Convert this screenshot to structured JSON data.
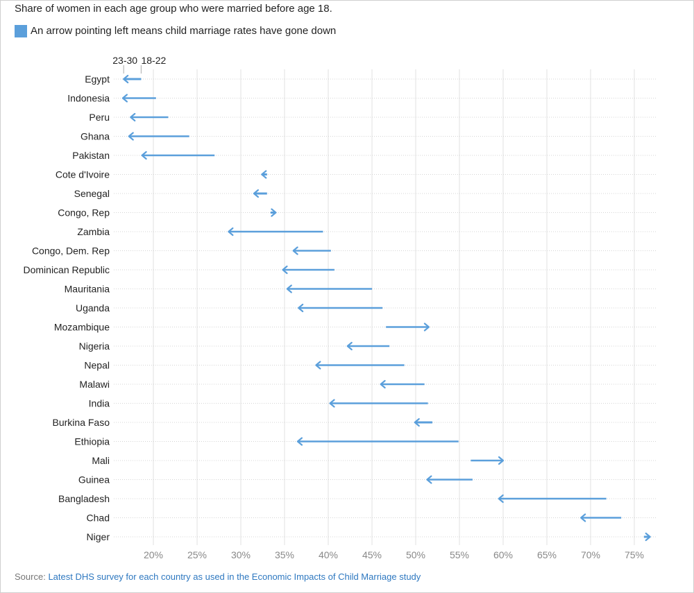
{
  "title": "Share of women in each age group who were married before age 18.",
  "legend": {
    "text": "An arrow pointing left means child marriage rates have gone down",
    "color": "#5b9fdb"
  },
  "source": {
    "label": "Source:",
    "link_text": "Latest DHS survey for each country as used in the Economic Impacts of Child Marriage study"
  },
  "chart_data": {
    "type": "arrow-dot",
    "series": [
      {
        "name": "18-22",
        "key": "from"
      },
      {
        "name": "23-30",
        "key": "to"
      }
    ],
    "xlim": [
      16.5,
      77
    ],
    "xticks": [
      20,
      25,
      30,
      35,
      40,
      45,
      50,
      55,
      60,
      65,
      70,
      75
    ],
    "xtick_labels": [
      "20%",
      "25%",
      "30%",
      "35%",
      "40%",
      "45%",
      "50%",
      "55%",
      "60%",
      "65%",
      "70%",
      "75%"
    ],
    "grid": true,
    "arrow_color": "#5b9fdb",
    "countries": [
      {
        "name": "Egypt",
        "from": 18.6,
        "to": 16.6
      },
      {
        "name": "Indonesia",
        "from": 20.3,
        "to": 16.5
      },
      {
        "name": "Peru",
        "from": 21.7,
        "to": 17.4
      },
      {
        "name": "Ghana",
        "from": 24.1,
        "to": 17.2
      },
      {
        "name": "Pakistan",
        "from": 27.0,
        "to": 18.7
      },
      {
        "name": "Cote d'Ivoire",
        "from": 33.0,
        "to": 32.4
      },
      {
        "name": "Senegal",
        "from": 33.0,
        "to": 31.5
      },
      {
        "name": "Congo, Rep",
        "from": 33.4,
        "to": 34.0
      },
      {
        "name": "Zambia",
        "from": 39.4,
        "to": 28.6
      },
      {
        "name": "Congo, Dem. Rep",
        "from": 40.3,
        "to": 36.0
      },
      {
        "name": "Dominican Republic",
        "from": 40.7,
        "to": 34.8
      },
      {
        "name": "Mauritania",
        "from": 45.0,
        "to": 35.3
      },
      {
        "name": "Uganda",
        "from": 46.2,
        "to": 36.6
      },
      {
        "name": "Mozambique",
        "from": 46.6,
        "to": 51.5
      },
      {
        "name": "Nigeria",
        "from": 47.0,
        "to": 42.2
      },
      {
        "name": "Nepal",
        "from": 48.7,
        "to": 38.6
      },
      {
        "name": "Malawi",
        "from": 51.0,
        "to": 46.0
      },
      {
        "name": "India",
        "from": 51.4,
        "to": 40.2
      },
      {
        "name": "Burkina Faso",
        "from": 51.9,
        "to": 49.9
      },
      {
        "name": "Ethiopia",
        "from": 54.9,
        "to": 36.5
      },
      {
        "name": "Mali",
        "from": 56.3,
        "to": 60.0
      },
      {
        "name": "Guinea",
        "from": 56.5,
        "to": 51.3
      },
      {
        "name": "Bangladesh",
        "from": 71.8,
        "to": 59.5
      },
      {
        "name": "Chad",
        "from": 73.5,
        "to": 68.9
      },
      {
        "name": "Niger",
        "from": 76.1,
        "to": 76.8
      }
    ]
  }
}
